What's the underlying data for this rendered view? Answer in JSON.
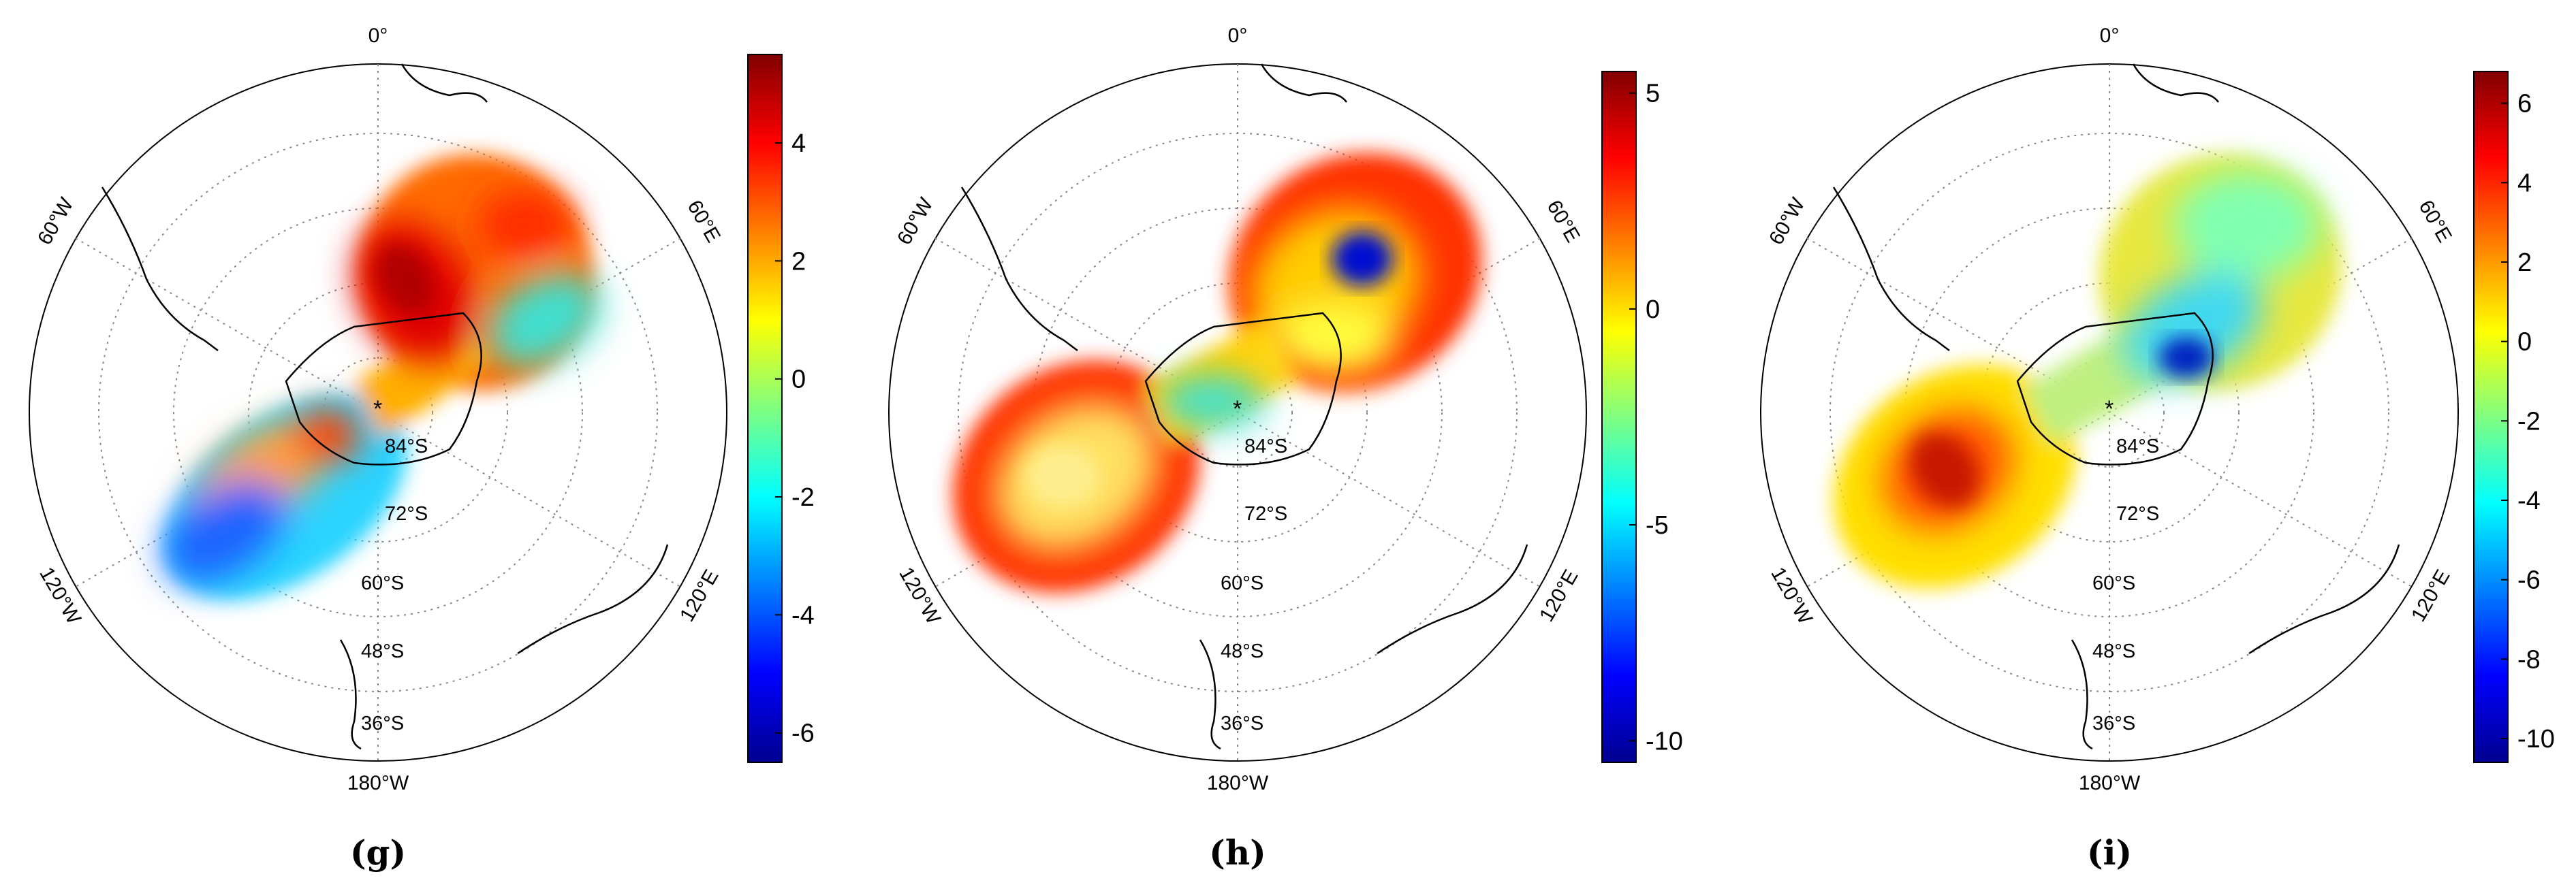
{
  "panels": [
    {
      "id": "g",
      "caption": "(g)",
      "lon_labels": {
        "top": "0°",
        "upper_left": "60°W",
        "upper_right": "60°E",
        "lower_left": "120°W",
        "lower_right": "120°E",
        "bottom": "180°W"
      },
      "lat_labels": [
        "84°S",
        "72°S",
        "60°S",
        "48°S",
        "36°S"
      ],
      "colorbar": {
        "min": -6.5,
        "max": 5.5,
        "ticks": [
          "4",
          "2",
          "0",
          "-2",
          "-4",
          "-6"
        ],
        "tick_values": [
          4,
          2,
          0,
          -2,
          -4,
          -6
        ]
      }
    },
    {
      "id": "h",
      "caption": "(h)",
      "lon_labels": {
        "top": "0°",
        "upper_left": "60°W",
        "upper_right": "60°E",
        "lower_left": "120°W",
        "lower_right": "120°E",
        "bottom": "180°W"
      },
      "lat_labels": [
        "84°S",
        "72°S",
        "60°S",
        "48°S",
        "36°S"
      ],
      "colorbar": {
        "min": -10.5,
        "max": 5.5,
        "ticks": [
          "5",
          "0",
          "-5",
          "-10"
        ],
        "tick_values": [
          5,
          0,
          -5,
          -10
        ]
      }
    },
    {
      "id": "i",
      "caption": "(i)",
      "lon_labels": {
        "top": "0°",
        "upper_left": "60°W",
        "upper_right": "60°E",
        "lower_left": "120°W",
        "lower_right": "120°E",
        "bottom": "180°W"
      },
      "lat_labels": [
        "84°S",
        "72°S",
        "60°S",
        "48°S",
        "36°S"
      ],
      "colorbar": {
        "min": -10.6,
        "max": 6.8,
        "ticks": [
          "6",
          "4",
          "2",
          "0",
          "-2",
          "-4",
          "-6",
          "-8",
          "-10"
        ],
        "tick_values": [
          6,
          4,
          2,
          0,
          -2,
          -4,
          -6,
          -8,
          -10
        ]
      }
    }
  ],
  "colors": {
    "jet": [
      "#00008f",
      "#0000ff",
      "#00bfff",
      "#40ffbf",
      "#ffff00",
      "#ff8000",
      "#ff0000",
      "#800000"
    ],
    "graticule": "#888888",
    "coastline": "#000000"
  }
}
